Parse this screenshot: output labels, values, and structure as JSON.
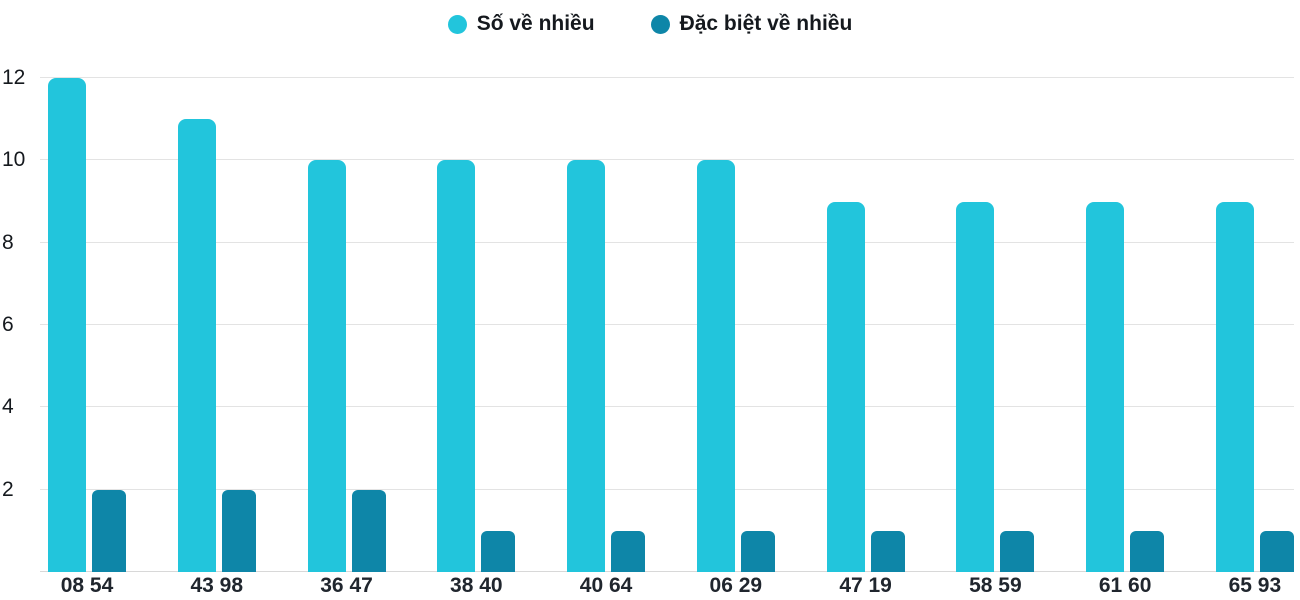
{
  "legend": {
    "items": [
      {
        "label": "Số về nhiều",
        "color": "#22c5dc"
      },
      {
        "label": "Đặc biệt về nhiều",
        "color": "#0e86a8"
      }
    ],
    "position": "top-center"
  },
  "chart_data": {
    "type": "bar",
    "categories": [
      "08 54",
      "43 98",
      "36 47",
      "38 40",
      "40 64",
      "06 29",
      "47 19",
      "58 59",
      "61 60",
      "65 93"
    ],
    "series": [
      {
        "name": "Số về nhiều",
        "color": "#22c5dc",
        "values": [
          12,
          11,
          10,
          10,
          10,
          10,
          9,
          9,
          9,
          9
        ]
      },
      {
        "name": "Đặc biệt về nhiều",
        "color": "#0e86a8",
        "values": [
          2,
          2,
          2,
          1,
          1,
          1,
          1,
          1,
          1,
          1
        ]
      }
    ],
    "title": "",
    "xlabel": "",
    "ylabel": "",
    "ylim": [
      0,
      12
    ],
    "yticks": [
      2,
      4,
      6,
      8,
      10,
      12
    ],
    "grid": true,
    "legend_position": "top-center",
    "colors": {
      "gridline": "#e3e3e3",
      "axis_text": "#15191e",
      "category_text": "#20262e"
    }
  }
}
